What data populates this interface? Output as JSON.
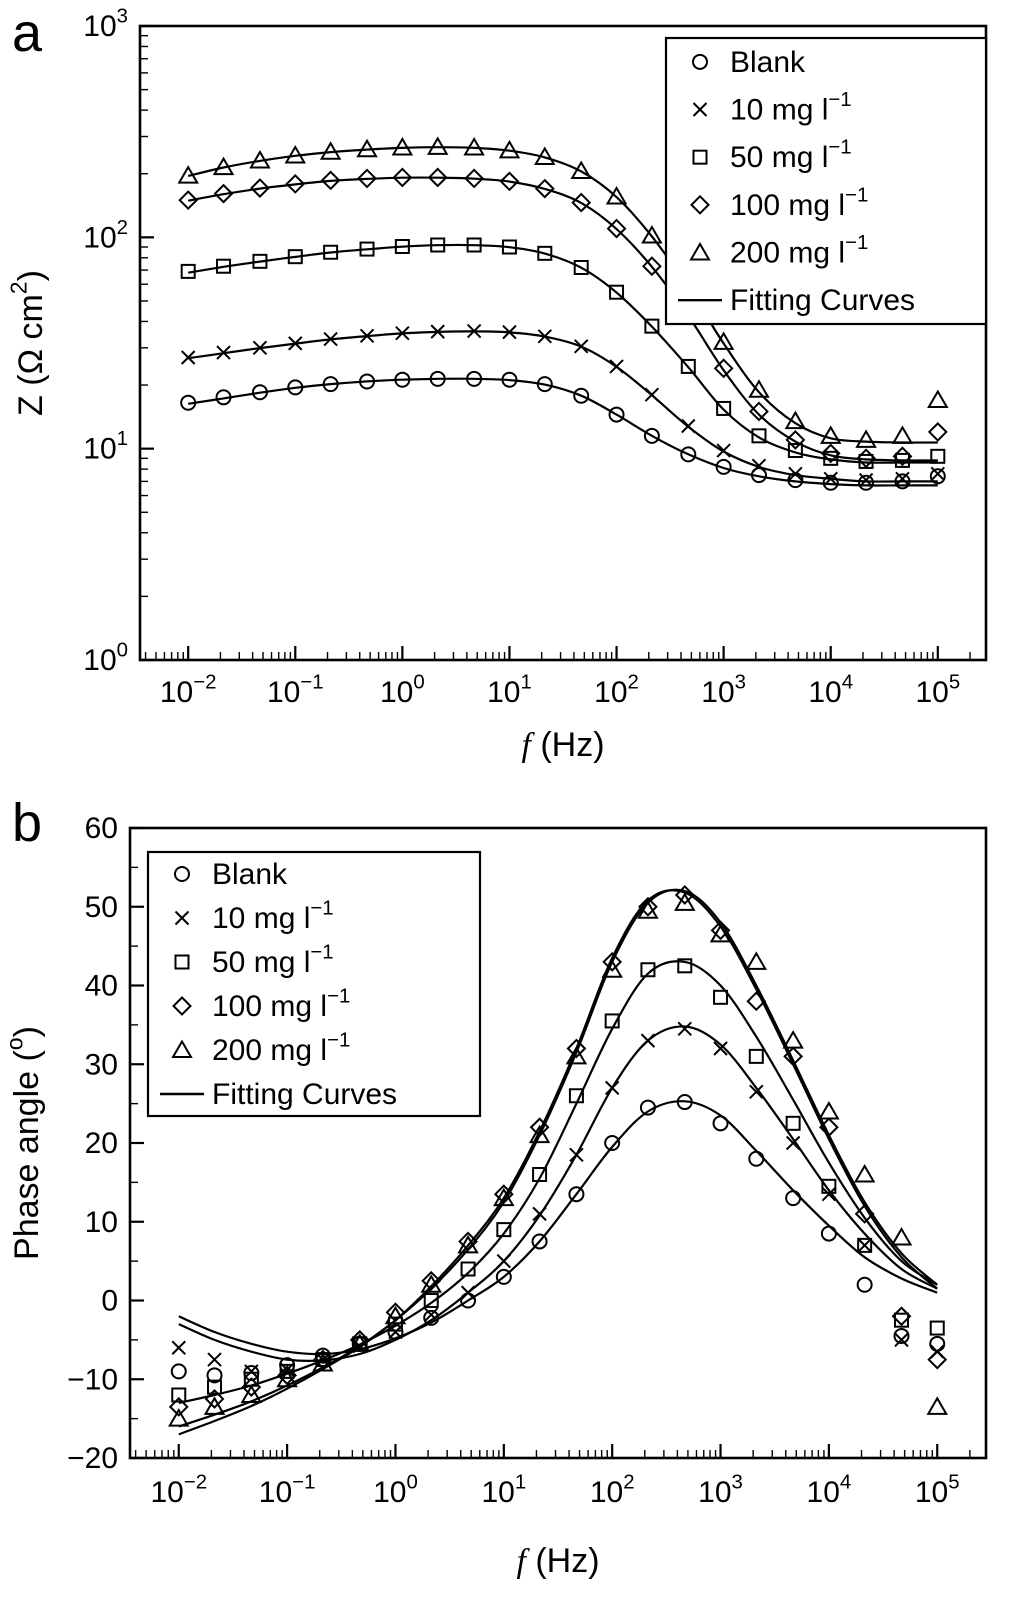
{
  "figure": {
    "background": "#ffffff",
    "line_color": "#000000"
  },
  "chart_data": [
    {
      "type": "line+scatter",
      "panel_label": "a",
      "x_scale": "log",
      "y_scale": "log",
      "x_range_exp": [
        -2.45,
        5.45
      ],
      "y_range": [
        1,
        1000
      ],
      "xlabel_parts": [
        {
          "t": "f",
          "italic": true
        },
        {
          "t": " (Hz)"
        }
      ],
      "ylabel_parts": [
        {
          "t": "Z (Ω cm"
        },
        {
          "t": "2",
          "sup": true
        },
        {
          "t": ")"
        }
      ],
      "x_ticks": [
        {
          "e": -2,
          "base": "10",
          "sup": "−2"
        },
        {
          "e": -1,
          "base": "10",
          "sup": "−1"
        },
        {
          "e": 0,
          "base": "10",
          "sup": "0"
        },
        {
          "e": 1,
          "base": "10",
          "sup": "1"
        },
        {
          "e": 2,
          "base": "10",
          "sup": "2"
        },
        {
          "e": 3,
          "base": "10",
          "sup": "3"
        },
        {
          "e": 4,
          "base": "10",
          "sup": "4"
        },
        {
          "e": 5,
          "base": "10",
          "sup": "5"
        }
      ],
      "y_ticks": [
        {
          "v": 1,
          "base": "10",
          "sup": "0"
        },
        {
          "v": 10,
          "base": "10",
          "sup": "1"
        },
        {
          "v": 100,
          "base": "10",
          "sup": "2"
        },
        {
          "v": 1000,
          "base": "10",
          "sup": "3"
        }
      ],
      "legend": {
        "position": "top-right",
        "entries": [
          {
            "marker": "circle",
            "text": "Blank"
          },
          {
            "marker": "x",
            "text": "10 mg l",
            "sup": "−1"
          },
          {
            "marker": "square",
            "text": "50 mg l",
            "sup": "−1"
          },
          {
            "marker": "diamond",
            "text": "100 mg l",
            "sup": "−1"
          },
          {
            "marker": "triangle",
            "text": "200 mg l",
            "sup": "−1"
          },
          {
            "marker": "line",
            "text": "Fitting Curves"
          }
        ]
      },
      "x_exp": [
        -2,
        -1.67,
        -1.33,
        -1,
        -0.67,
        -0.33,
        0,
        0.33,
        0.67,
        1,
        1.33,
        1.67,
        2,
        2.33,
        2.67,
        3,
        3.33,
        3.67,
        4,
        4.33,
        4.67,
        5
      ],
      "series": [
        {
          "id": "blank",
          "label": "Blank",
          "marker": "circle",
          "y": [
            16.5,
            17.5,
            18.5,
            19.5,
            20.2,
            20.8,
            21.2,
            21.4,
            21.4,
            21.2,
            20.2,
            17.8,
            14.5,
            11.5,
            9.4,
            8.2,
            7.5,
            7.1,
            6.9,
            6.9,
            7.0,
            7.4
          ]
        },
        {
          "id": "10mg",
          "label": "10 mg l−1",
          "marker": "x",
          "y": [
            27,
            28.5,
            30,
            31.5,
            33,
            34.2,
            35.2,
            35.8,
            36,
            35.6,
            34,
            30.5,
            24.5,
            18,
            12.8,
            9.8,
            8.3,
            7.6,
            7.2,
            7.1,
            7.2,
            7.6
          ]
        },
        {
          "id": "50mg",
          "label": "50 mg l−1",
          "marker": "square",
          "y": [
            69,
            73,
            77,
            81,
            85,
            88,
            90.5,
            92,
            92,
            90,
            84,
            72,
            55,
            38,
            24.5,
            15.5,
            11.5,
            9.8,
            9.0,
            8.7,
            8.8,
            9.2
          ]
        },
        {
          "id": "100mg",
          "label": "100 mg l−1",
          "marker": "diamond",
          "y": [
            150,
            161,
            171,
            179,
            186,
            190,
            192,
            192,
            190,
            184,
            170,
            146,
            110,
            73,
            43,
            24,
            15,
            11,
            9.5,
            9.0,
            9.2,
            12
          ]
        },
        {
          "id": "200mg",
          "label": "200 mg l−1",
          "marker": "triangle",
          "y": [
            196,
            215,
            231,
            244,
            254,
            261,
            266,
            268,
            266,
            258,
            240,
            206,
            156,
            102,
            59,
            32,
            19,
            13.5,
            11.5,
            11,
            11.5,
            17
          ]
        }
      ],
      "fits": [
        {
          "id": "blank-fit",
          "y": [
            16.3,
            17.3,
            18.4,
            19.4,
            20.2,
            20.8,
            21.2,
            21.4,
            21.4,
            21.1,
            20.1,
            17.8,
            14.5,
            11.5,
            9.4,
            8.1,
            7.4,
            7.0,
            6.8,
            6.7,
            6.7,
            6.7
          ]
        },
        {
          "id": "10mg-fit",
          "y": [
            26.8,
            28.3,
            29.9,
            31.4,
            32.9,
            34.1,
            35.1,
            35.7,
            35.9,
            35.5,
            33.9,
            30.4,
            24.4,
            17.9,
            12.7,
            9.7,
            8.2,
            7.5,
            7.2,
            7.0,
            7.0,
            7.0
          ]
        },
        {
          "id": "50mg-fit",
          "y": [
            68,
            72.5,
            76.8,
            80.8,
            84.8,
            87.8,
            90.3,
            91.8,
            91.8,
            89.8,
            83.8,
            71.8,
            54.8,
            37.8,
            24.3,
            15.3,
            11.3,
            9.6,
            8.9,
            8.6,
            8.6,
            8.6
          ]
        },
        {
          "id": "100mg-fit",
          "y": [
            149,
            160,
            170,
            178,
            185,
            189,
            191.5,
            191.5,
            189.5,
            183.5,
            169.5,
            145.5,
            109.5,
            72.5,
            42.5,
            23.5,
            14.5,
            10.8,
            9.3,
            8.9,
            8.8,
            8.8
          ]
        },
        {
          "id": "200mg-fit",
          "y": [
            195,
            214,
            230,
            243,
            253,
            260,
            265,
            267,
            265,
            257,
            239,
            205,
            155,
            101,
            58,
            31.5,
            18.5,
            13.2,
            11.2,
            10.8,
            10.7,
            10.7
          ]
        }
      ]
    },
    {
      "type": "line+scatter",
      "panel_label": "b",
      "x_scale": "log",
      "y_scale": "linear",
      "x_range_exp": [
        -2.45,
        5.45
      ],
      "y_range": [
        -20,
        60
      ],
      "xlabel_parts": [
        {
          "t": "f",
          "italic": true
        },
        {
          "t": " (Hz)"
        }
      ],
      "ylabel_parts": [
        {
          "t": "Phase angle ("
        },
        {
          "t": "o",
          "sup": true
        },
        {
          "t": ")"
        }
      ],
      "x_ticks": [
        {
          "e": -2,
          "base": "10",
          "sup": "−2"
        },
        {
          "e": -1,
          "base": "10",
          "sup": "−1"
        },
        {
          "e": 0,
          "base": "10",
          "sup": "0"
        },
        {
          "e": 1,
          "base": "10",
          "sup": "1"
        },
        {
          "e": 2,
          "base": "10",
          "sup": "2"
        },
        {
          "e": 3,
          "base": "10",
          "sup": "3"
        },
        {
          "e": 4,
          "base": "10",
          "sup": "4"
        },
        {
          "e": 5,
          "base": "10",
          "sup": "5"
        }
      ],
      "y_ticks": [
        {
          "v": -20,
          "label": "−20"
        },
        {
          "v": -10,
          "label": "−10"
        },
        {
          "v": 0,
          "label": "0"
        },
        {
          "v": 10,
          "label": "10"
        },
        {
          "v": 20,
          "label": "20"
        },
        {
          "v": 30,
          "label": "30"
        },
        {
          "v": 40,
          "label": "40"
        },
        {
          "v": 50,
          "label": "50"
        },
        {
          "v": 60,
          "label": "60"
        }
      ],
      "legend": {
        "position": "top-left",
        "entries": [
          {
            "marker": "circle",
            "text": "Blank"
          },
          {
            "marker": "x",
            "text": "10 mg l",
            "sup": "−1"
          },
          {
            "marker": "square",
            "text": "50 mg l",
            "sup": "−1"
          },
          {
            "marker": "diamond",
            "text": "100 mg l",
            "sup": "−1"
          },
          {
            "marker": "triangle",
            "text": "200 mg l",
            "sup": "−1"
          },
          {
            "marker": "line",
            "text": "Fitting Curves"
          }
        ]
      },
      "x_exp": [
        -2,
        -1.67,
        -1.33,
        -1,
        -0.67,
        -0.33,
        0,
        0.33,
        0.67,
        1,
        1.33,
        1.67,
        2,
        2.33,
        2.67,
        3,
        3.33,
        3.67,
        4,
        4.33,
        4.67,
        5
      ],
      "series": [
        {
          "id": "blank",
          "label": "Blank",
          "marker": "circle",
          "y": [
            -9,
            -9.5,
            -9.2,
            -8.2,
            -7,
            -5.5,
            -4,
            -2.2,
            0,
            3,
            7.5,
            13.5,
            20,
            24.5,
            25.2,
            22.5,
            18,
            13,
            8.5,
            2,
            -4.5,
            -5.5
          ]
        },
        {
          "id": "10mg",
          "label": "10 mg l−1",
          "marker": "x",
          "y": [
            -6,
            -7.5,
            -9,
            -8.8,
            -7.5,
            -5.8,
            -4,
            -1.8,
            1,
            5,
            11,
            18.5,
            27,
            33,
            34.5,
            32,
            26.5,
            20,
            13.5,
            7,
            -5,
            -6.5
          ]
        },
        {
          "id": "50mg",
          "label": "50 mg l−1",
          "marker": "square",
          "y": [
            -12,
            -11,
            -10,
            -9,
            -7.5,
            -5.5,
            -3,
            0,
            4,
            9,
            16,
            26,
            35.5,
            42,
            42.5,
            38.5,
            31,
            22.5,
            14.5,
            7,
            -2.5,
            -3.5
          ]
        },
        {
          "id": "100mg",
          "label": "100 mg l−1",
          "marker": "diamond",
          "y": [
            -13.5,
            -12.5,
            -11,
            -9.5,
            -7.5,
            -5,
            -1.5,
            2.5,
            7.5,
            13.5,
            22,
            32,
            43,
            50,
            51.5,
            47,
            38,
            31,
            22,
            11,
            -2,
            -7.5
          ]
        },
        {
          "id": "200mg",
          "label": "200 mg l−1",
          "marker": "triangle",
          "y": [
            -15,
            -13.5,
            -12,
            -10,
            -8,
            -5.5,
            -2,
            2,
            7,
            13,
            21,
            31,
            42,
            49.5,
            50.5,
            46.5,
            43,
            33,
            24,
            16,
            8,
            -13.5
          ]
        }
      ],
      "fits": [
        {
          "id": "blank-fit",
          "y": [
            -2,
            -4,
            -5.5,
            -6.5,
            -6.8,
            -6.2,
            -4.8,
            -2.8,
            0,
            3,
            7.5,
            13.5,
            19.5,
            24,
            25.3,
            23.5,
            19,
            14,
            9.5,
            5.5,
            2.8,
            1
          ]
        },
        {
          "id": "10mg-fit",
          "y": [
            -3,
            -5,
            -6.5,
            -7.5,
            -7.6,
            -6.8,
            -5,
            -2.5,
            1,
            5,
            10.8,
            18.5,
            27,
            33,
            34.8,
            32.5,
            27,
            20.5,
            14,
            8.5,
            4,
            1.5
          ]
        },
        {
          "id": "50mg-fit",
          "y": [
            -13,
            -12,
            -10.8,
            -9.3,
            -7.6,
            -5.6,
            -3.2,
            -0.3,
            3.5,
            8.5,
            15.5,
            25,
            34.5,
            41.5,
            43,
            40,
            33.5,
            25.5,
            17.5,
            10.5,
            5,
            2
          ]
        },
        {
          "id": "100mg-fit",
          "y": [
            -16,
            -14.5,
            -12.8,
            -10.8,
            -8.5,
            -5.8,
            -2.5,
            1.5,
            6.5,
            12.5,
            21,
            31.5,
            43,
            50.5,
            52,
            48,
            40,
            30.5,
            21,
            12.5,
            6,
            2
          ]
        },
        {
          "id": "200mg-fit",
          "y": [
            -17,
            -15.3,
            -13.4,
            -11.2,
            -8.7,
            -5.9,
            -2.5,
            1.8,
            7,
            13,
            21.5,
            32,
            43.5,
            50.8,
            51.8,
            47.5,
            39.5,
            30,
            20.5,
            12,
            5.5,
            1.5
          ]
        }
      ]
    }
  ]
}
